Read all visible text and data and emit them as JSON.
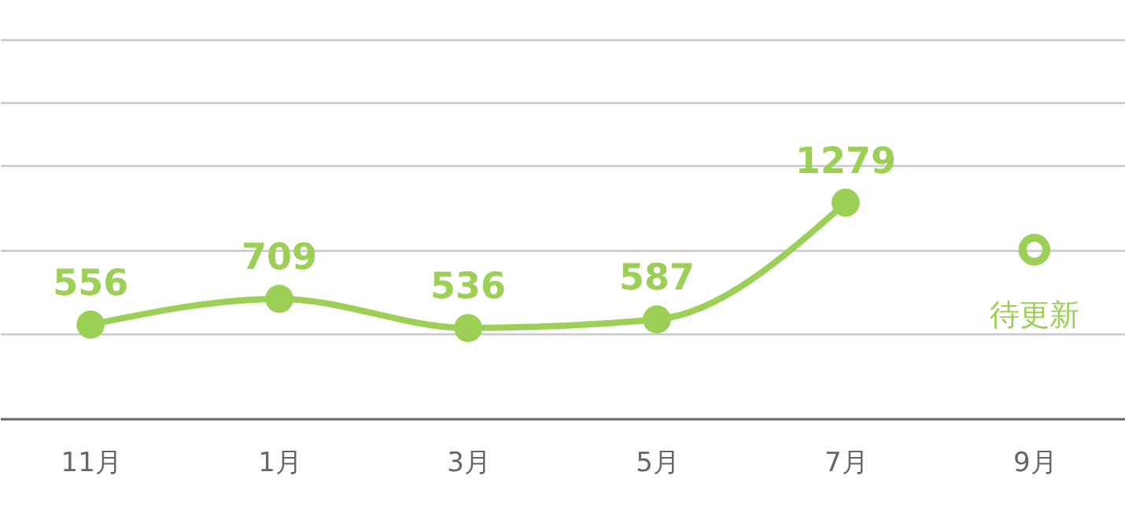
{
  "chart_data": {
    "type": "line",
    "categories": [
      "11月",
      "1月",
      "3月",
      "5月",
      "7月",
      "9月"
    ],
    "values": [
      556,
      709,
      536,
      587,
      1279,
      null
    ],
    "color": "#9ccf55",
    "marker": "circle",
    "data_labels": true,
    "grid": "y",
    "tick_labels": "x",
    "ylim": [
      0,
      2480
    ],
    "yticks": [
      {
        "value": 500,
        "label": null
      },
      {
        "value": 1000,
        "label": null
      },
      {
        "value": 1500,
        "label": null
      },
      {
        "value": 1870,
        "label": null
      },
      {
        "value": 2250,
        "label": null
      }
    ],
    "annotations": [
      {
        "text": "待更新",
        "x": "9月",
        "y": 1000
      }
    ]
  }
}
